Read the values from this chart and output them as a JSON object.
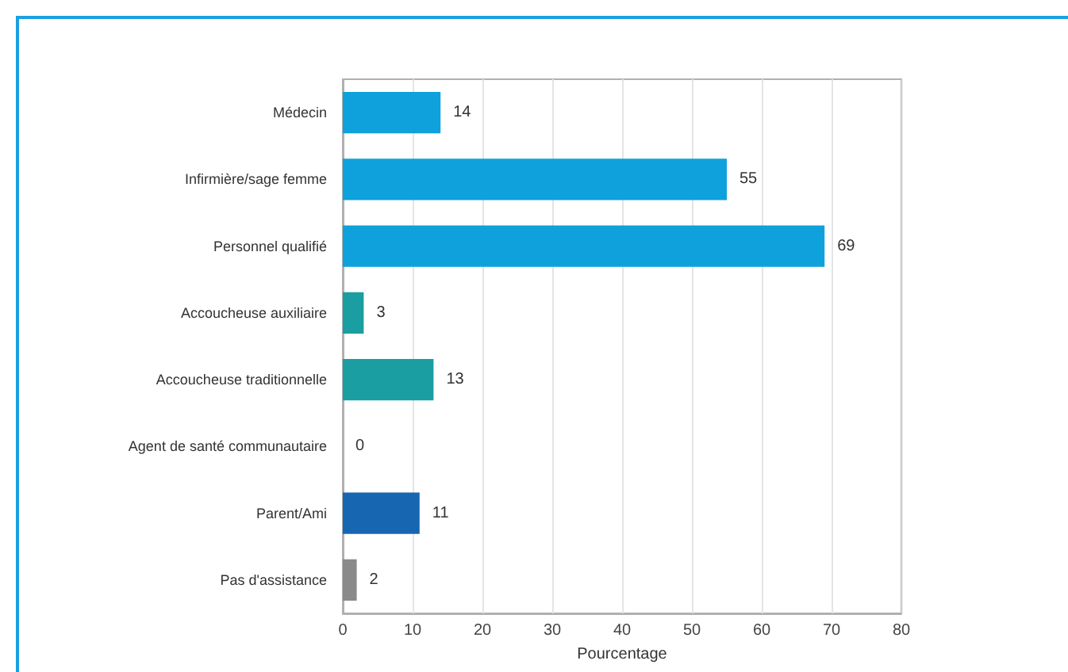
{
  "chart_data": {
    "type": "bar",
    "orientation": "horizontal",
    "xlabel": "Pourcentage",
    "categories": [
      "Médecin",
      "Infirmière/sage femme",
      "Personnel qualifié",
      "Accoucheuse auxiliaire",
      "Accoucheuse traditionnelle",
      "Agent de santé communautaire",
      "Parent/Ami",
      "Pas d'assistance"
    ],
    "values": [
      14,
      55,
      69,
      3,
      13,
      0,
      11,
      2
    ],
    "colors": [
      "#0ea1dc",
      "#0ea1dc",
      "#0ea1dc",
      "#1a9ea2",
      "#1a9ea2",
      "#1a9ea2",
      "#1666b2",
      "#8a8a8a"
    ],
    "xlim": [
      0,
      80
    ],
    "xticks": [
      0,
      10,
      20,
      30,
      40,
      50,
      60,
      70,
      80
    ],
    "grid": "x",
    "data_labels": true
  }
}
